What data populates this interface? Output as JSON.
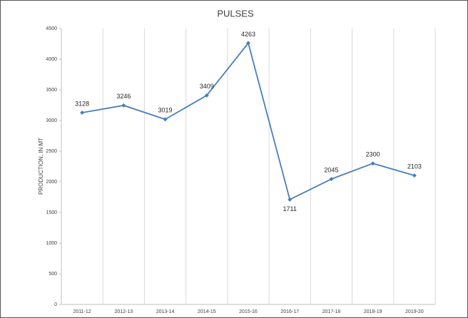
{
  "chart_data": {
    "type": "line",
    "title": "PULSES",
    "y_label": "PRODUCTION, IN MT",
    "categories": [
      "2011-12",
      "2012-13",
      "2013-14",
      "2014-15",
      "2015-16",
      "2016-17",
      "2017-18",
      "2018-19",
      "2019-20"
    ],
    "values": [
      3128,
      3246,
      3019,
      3409,
      4263,
      1711,
      2045,
      2300,
      2103
    ],
    "color": "#4a7ebb",
    "ylim": [
      0,
      4500
    ],
    "yticks": [
      0,
      500,
      1000,
      1500,
      2000,
      2500,
      3000,
      3500,
      4000,
      4500
    ],
    "grid": true
  }
}
